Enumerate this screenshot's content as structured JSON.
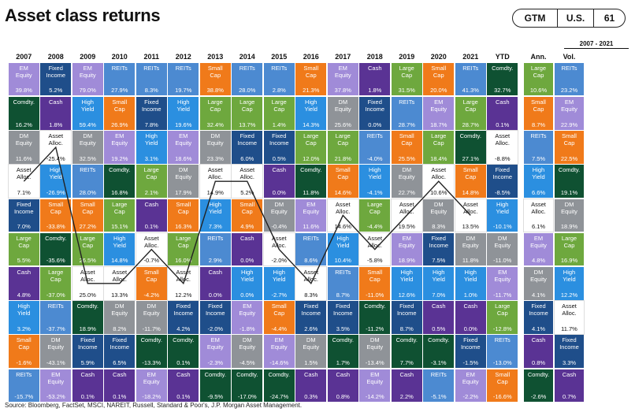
{
  "title": "Asset class returns",
  "badges": [
    "GTM",
    "U.S.",
    "61"
  ],
  "period_label": "2007 - 2021",
  "source": "Source: Bloomberg, FactSet, MSCI, NAREIT, Russell, Standard & Poor's, J.P. Morgan Asset Management.",
  "colors": {
    "REITs": "#4c8ad1",
    "EM Equity": "#a08bd8",
    "Fixed Income": "#1f4e8a",
    "Comdty.": "#0f5132",
    "DM Equity": "#8f9398",
    "Asset Alloc.": "#ffffff",
    "High Yield": "#2b8fe0",
    "Small Cap": "#f07a1a",
    "Large Cap": "#6ea83e",
    "Cash": "#5a3394"
  },
  "text_colors": {
    "Asset Alloc.": "#111111",
    "default": "#ffffff"
  },
  "chart_data": {
    "type": "table",
    "title": "Asset class returns",
    "columns": [
      "2007",
      "2008",
      "2009",
      "2010",
      "2011",
      "2012",
      "2013",
      "2014",
      "2015",
      "2016",
      "2017",
      "2018",
      "2019",
      "2020",
      "2021",
      "YTD",
      "Ann.",
      "Vol."
    ],
    "rows": [
      [
        [
          "EM\nEquity",
          "39.8%"
        ],
        [
          "Fixed\nIncome",
          "5.2%"
        ],
        [
          "EM\nEquity",
          "79.0%"
        ],
        [
          "REITs",
          "27.9%"
        ],
        [
          "REITs",
          "8.3%"
        ],
        [
          "REITs",
          "19.7%"
        ],
        [
          "Small\nCap",
          "38.8%"
        ],
        [
          "REITs",
          "28.0%"
        ],
        [
          "REITs",
          "2.8%"
        ],
        [
          "Small\nCap",
          "21.3%"
        ],
        [
          "EM\nEquity",
          "37.8%"
        ],
        [
          "Cash",
          "1.8%"
        ],
        [
          "Large\nCap",
          "31.5%"
        ],
        [
          "Small\nCap",
          "20.0%"
        ],
        [
          "REITs",
          "41.3%"
        ],
        [
          "Comdty.",
          "32.7%"
        ],
        [
          "Large\nCap",
          "10.6%"
        ],
        [
          "REITs",
          "23.2%"
        ]
      ],
      [
        [
          "Comdty.",
          "16.2%"
        ],
        [
          "Cash",
          "1.8%"
        ],
        [
          "High\nYield",
          "59.4%"
        ],
        [
          "Small\nCap",
          "26.9%"
        ],
        [
          "Fixed\nIncome",
          "7.8%"
        ],
        [
          "High\nYield",
          "19.6%"
        ],
        [
          "Large\nCap",
          "32.4%"
        ],
        [
          "Large\nCap",
          "13.7%"
        ],
        [
          "Large\nCap",
          "1.4%"
        ],
        [
          "High\nYield",
          "14.3%"
        ],
        [
          "DM\nEquity",
          "25.6%"
        ],
        [
          "Fixed\nIncome",
          "0.0%"
        ],
        [
          "REITs",
          "28.7%"
        ],
        [
          "EM\nEquity",
          "18.7%"
        ],
        [
          "Large\nCap",
          "28.7%"
        ],
        [
          "Cash",
          "0.1%"
        ],
        [
          "Small\nCap",
          "8.7%"
        ],
        [
          "EM\nEquity",
          "22.9%"
        ]
      ],
      [
        [
          "DM\nEquity",
          "11.6%"
        ],
        [
          "Asset\nAlloc.",
          "-25.4%"
        ],
        [
          "DM\nEquity",
          "32.5%"
        ],
        [
          "EM\nEquity",
          "19.2%"
        ],
        [
          "High\nYield",
          "3.1%"
        ],
        [
          "EM\nEquity",
          "18.6%"
        ],
        [
          "DM\nEquity",
          "23.3%"
        ],
        [
          "Fixed\nIncome",
          "6.0%"
        ],
        [
          "Fixed\nIncome",
          "0.5%"
        ],
        [
          "Large\nCap",
          "12.0%"
        ],
        [
          "Large\nCap",
          "21.8%"
        ],
        [
          "REITs",
          "-4.0%"
        ],
        [
          "Small\nCap",
          "25.5%"
        ],
        [
          "Large\nCap",
          "18.4%"
        ],
        [
          "Comdty.",
          "27.1%"
        ],
        [
          "Asset\nAlloc.",
          "-8.8%"
        ],
        [
          "REITs",
          "7.5%"
        ],
        [
          "Small\nCap",
          "22.5%"
        ]
      ],
      [
        [
          "Asset\nAlloc.",
          "7.1%"
        ],
        [
          "High\nYield",
          "-26.9%"
        ],
        [
          "REITs",
          "28.0%"
        ],
        [
          "Comdty.",
          "16.8%"
        ],
        [
          "Large\nCap",
          "2.1%"
        ],
        [
          "DM\nEquity",
          "17.9%"
        ],
        [
          "Asset\nAlloc.",
          "14.9%"
        ],
        [
          "Asset\nAlloc.",
          "5.2%"
        ],
        [
          "Cash",
          "0.0%"
        ],
        [
          "Comdty.",
          "11.8%"
        ],
        [
          "Small\nCap",
          "14.6%"
        ],
        [
          "High\nYield",
          "-4.1%"
        ],
        [
          "DM\nEquity",
          "22.7%"
        ],
        [
          "Asset\nAlloc.",
          "10.6%"
        ],
        [
          "Small\nCap",
          "14.8%"
        ],
        [
          "Fixed\nIncome",
          "-8.5%"
        ],
        [
          "High\nYield",
          "6.6%"
        ],
        [
          "Comdty.",
          "19.1%"
        ]
      ],
      [
        [
          "Fixed\nIncome",
          "7.0%"
        ],
        [
          "Small\nCap",
          "-33.8%"
        ],
        [
          "Small\nCap",
          "27.2%"
        ],
        [
          "Large\nCap",
          "15.1%"
        ],
        [
          "Cash",
          "0.1%"
        ],
        [
          "Small\nCap",
          "16.3%"
        ],
        [
          "High\nYield",
          "7.3%"
        ],
        [
          "Small\nCap",
          "4.9%"
        ],
        [
          "DM\nEquity",
          "-0.4%"
        ],
        [
          "EM\nEquity",
          "11.6%"
        ],
        [
          "Asset\nAlloc.",
          "14.6%"
        ],
        [
          "Large\nCap",
          "-4.4%"
        ],
        [
          "Asset\nAlloc.",
          "19.5%"
        ],
        [
          "DM\nEquity",
          "8.3%"
        ],
        [
          "Asset\nAlloc.",
          "13.5%"
        ],
        [
          "High\nYield",
          "-10.1%"
        ],
        [
          "Asset\nAlloc.",
          "6.1%"
        ],
        [
          "DM\nEquity",
          "18.9%"
        ]
      ],
      [
        [
          "Large\nCap",
          "5.5%"
        ],
        [
          "Comdty.",
          "-35.6%"
        ],
        [
          "Large\nCap",
          "26.5%"
        ],
        [
          "High\nYield",
          "14.8%"
        ],
        [
          "Asset\nAlloc.",
          "-0.7%"
        ],
        [
          "Large\nCap",
          "16.0%"
        ],
        [
          "REITs",
          "2.9%"
        ],
        [
          "Cash",
          "0.0%"
        ],
        [
          "Asset\nAlloc.",
          "-2.0%"
        ],
        [
          "REITs",
          "8.6%"
        ],
        [
          "High\nYield",
          "10.4%"
        ],
        [
          "Asset\nAlloc.",
          "-5.8%"
        ],
        [
          "EM\nEquity",
          "18.9%"
        ],
        [
          "Fixed\nIncome",
          "7.5%"
        ],
        [
          "DM\nEquity",
          "11.8%"
        ],
        [
          "DM\nEquity",
          "-11.0%"
        ],
        [
          "EM\nEquity",
          "4.8%"
        ],
        [
          "Large\nCap",
          "16.9%"
        ]
      ],
      [
        [
          "Cash",
          "4.8%"
        ],
        [
          "Large\nCap",
          "-37.0%"
        ],
        [
          "Asset\nAlloc.",
          "25.0%"
        ],
        [
          "Asset\nAlloc.",
          "13.3%"
        ],
        [
          "Small\nCap",
          "-4.2%"
        ],
        [
          "Asset\nAlloc.",
          "12.2%"
        ],
        [
          "Cash",
          "0.0%"
        ],
        [
          "High\nYield",
          "0.0%"
        ],
        [
          "High\nYield",
          "-2.7%"
        ],
        [
          "Asset\nAlloc.",
          "8.3%"
        ],
        [
          "REITs",
          "8.7%"
        ],
        [
          "Small\nCap",
          "-11.0%"
        ],
        [
          "High\nYield",
          "12.6%"
        ],
        [
          "High\nYield",
          "7.0%"
        ],
        [
          "High\nYield",
          "1.0%"
        ],
        [
          "EM\nEquity",
          "-11.7%"
        ],
        [
          "DM\nEquity",
          "4.1%"
        ],
        [
          "High\nYield",
          "12.2%"
        ]
      ],
      [
        [
          "High\nYield",
          "3.2%"
        ],
        [
          "REITs",
          "-37.7%"
        ],
        [
          "Comdty.",
          "18.9%"
        ],
        [
          "DM\nEquity",
          "8.2%"
        ],
        [
          "DM\nEquity",
          "-11.7%"
        ],
        [
          "Fixed\nIncome",
          "4.2%"
        ],
        [
          "Fixed\nIncome",
          "-2.0%"
        ],
        [
          "EM\nEquity",
          "-1.8%"
        ],
        [
          "Small\nCap",
          "-4.4%"
        ],
        [
          "Fixed\nIncome",
          "2.6%"
        ],
        [
          "Fixed\nIncome",
          "3.5%"
        ],
        [
          "Comdty.",
          "-11.2%"
        ],
        [
          "Fixed\nIncome",
          "8.7%"
        ],
        [
          "Cash",
          "0.5%"
        ],
        [
          "Cash",
          "0.0%"
        ],
        [
          "Large\nCap",
          "-12.8%"
        ],
        [
          "Fixed\nIncome",
          "4.1%"
        ],
        [
          "Asset\nAlloc.",
          "11.7%"
        ]
      ],
      [
        [
          "Small\nCap",
          "-1.6%"
        ],
        [
          "DM\nEquity",
          "-43.1%"
        ],
        [
          "Fixed\nIncome",
          "5.9%"
        ],
        [
          "Fixed\nIncome",
          "6.5%"
        ],
        [
          "Comdty.",
          "-13.3%"
        ],
        [
          "Comdty.",
          "0.1%"
        ],
        [
          "EM\nEquity",
          "-2.3%"
        ],
        [
          "DM\nEquity",
          "-4.5%"
        ],
        [
          "EM\nEquity",
          "-14.6%"
        ],
        [
          "DM\nEquity",
          "1.5%"
        ],
        [
          "Comdty.",
          "1.7%"
        ],
        [
          "DM\nEquity",
          "-13.4%"
        ],
        [
          "Comdty.",
          "7.7%"
        ],
        [
          "Comdty.",
          "-3.1%"
        ],
        [
          "Fixed\nIncome",
          "-1.5%"
        ],
        [
          "REITs",
          "-13.0%"
        ],
        [
          "Cash",
          "0.8%"
        ],
        [
          "Fixed\nIncome",
          "3.3%"
        ]
      ],
      [
        [
          "REITs",
          "-15.7%"
        ],
        [
          "EM\nEquity",
          "-53.2%"
        ],
        [
          "Cash",
          "0.1%"
        ],
        [
          "Cash",
          "0.1%"
        ],
        [
          "EM\nEquity",
          "-18.2%"
        ],
        [
          "Cash",
          "0.1%"
        ],
        [
          "Comdty.",
          "-9.5%"
        ],
        [
          "Comdty.",
          "-17.0%"
        ],
        [
          "Comdty.",
          "-24.7%"
        ],
        [
          "Cash",
          "0.3%"
        ],
        [
          "Cash",
          "0.8%"
        ],
        [
          "EM\nEquity",
          "-14.2%"
        ],
        [
          "Cash",
          "2.2%"
        ],
        [
          "REITs",
          "-5.1%"
        ],
        [
          "EM\nEquity",
          "-2.2%"
        ],
        [
          "Small\nCap",
          "-16.6%"
        ],
        [
          "Comdty.",
          "-2.6%"
        ],
        [
          "Cash",
          "0.7%"
        ]
      ]
    ]
  }
}
